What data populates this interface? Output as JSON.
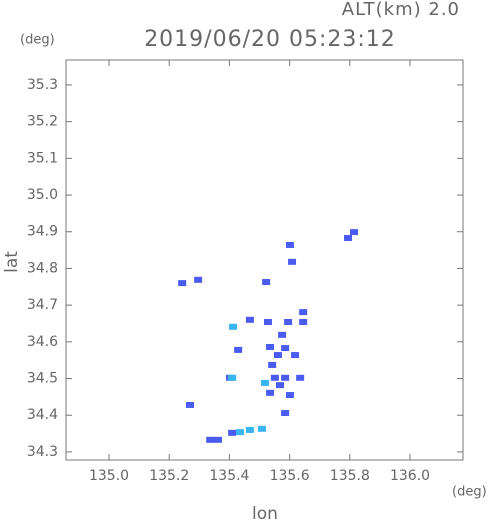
{
  "chart_data": {
    "type": "scatter",
    "title": "2019/06/20 05:23:12",
    "subtitle": "ALT(km) 2.0",
    "x_unit": "(deg)",
    "y_unit": "(deg)",
    "x_label": "lon",
    "y_label": "lat",
    "xlim": [
      134.857,
      136.176
    ],
    "ylim": [
      34.278,
      35.368
    ],
    "xticks": [
      {
        "value": 135,
        "label": "135.0"
      },
      135.2,
      135.4,
      135.6,
      135.8,
      {
        "value": 136,
        "label": "136.0"
      }
    ],
    "yticks": [
      34.3,
      34.4,
      34.5,
      34.6,
      34.7,
      34.8,
      34.9,
      {
        "value": 35,
        "label": "35.0"
      },
      35.1,
      35.2,
      35.3
    ],
    "series": [
      {
        "color": "#4a5cf0",
        "x": [
          135.243,
          135.296,
          135.522,
          135.601,
          135.608,
          135.794,
          135.814,
          135.645,
          135.645,
          135.468,
          135.528,
          135.595,
          135.429,
          135.402,
          135.575,
          135.585,
          135.561,
          135.618,
          135.542,
          135.551,
          135.585,
          135.635,
          135.601,
          135.535,
          135.585,
          135.269,
          135.336,
          135.362,
          135.409,
          135.535,
          135.568
        ],
        "y": [
          34.76,
          34.769,
          34.763,
          34.864,
          34.818,
          34.883,
          34.899,
          34.681,
          34.654,
          34.66,
          34.654,
          34.654,
          34.578,
          34.502,
          34.619,
          34.583,
          34.564,
          34.564,
          34.537,
          34.502,
          34.502,
          34.502,
          34.455,
          34.461,
          34.406,
          34.428,
          34.333,
          34.333,
          34.352,
          34.586,
          34.482
        ]
      },
      {
        "color": "#38b6f0",
        "x": [
          135.412,
          135.518,
          135.435,
          135.468,
          135.508,
          135.409
        ],
        "y": [
          34.641,
          34.488,
          34.354,
          34.36,
          34.363,
          34.502
        ]
      }
    ]
  }
}
